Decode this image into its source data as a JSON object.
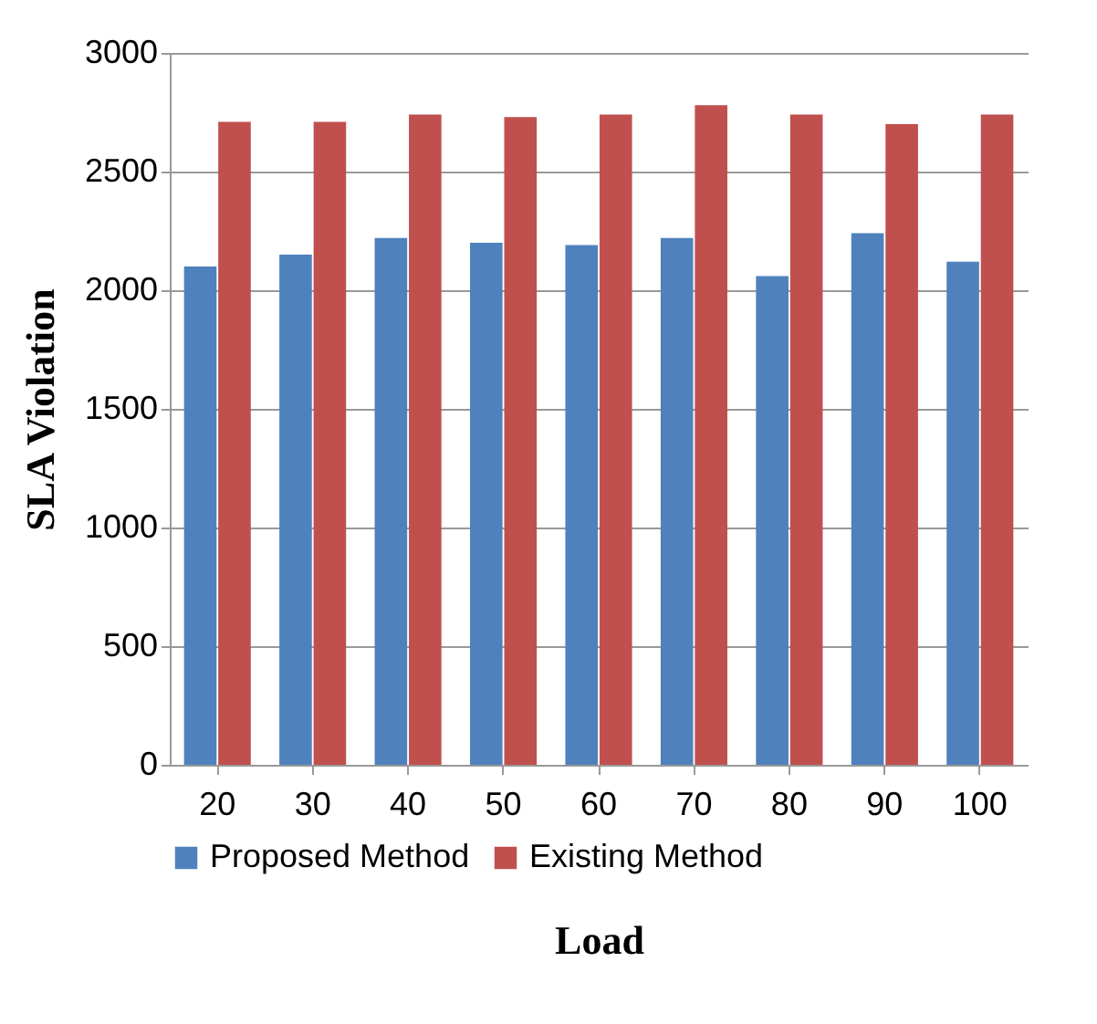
{
  "chart_data": {
    "type": "bar",
    "xlabel": "Load",
    "ylabel": "SLA Violation",
    "categories": [
      "20",
      "30",
      "40",
      "50",
      "60",
      "70",
      "80",
      "90",
      "100"
    ],
    "series": [
      {
        "name": "Proposed Method",
        "color": "#4f81bd",
        "values": [
          2100,
          2150,
          2220,
          2200,
          2190,
          2220,
          2060,
          2240,
          2120
        ]
      },
      {
        "name": "Existing Method",
        "color": "#c0504d",
        "values": [
          2710,
          2710,
          2740,
          2730,
          2740,
          2780,
          2740,
          2700,
          2740
        ]
      }
    ],
    "ylim": [
      0,
      3000
    ],
    "yticks": [
      0,
      500,
      1000,
      1500,
      2000,
      2500,
      3000
    ],
    "grid": "y",
    "legend": "bottom"
  }
}
